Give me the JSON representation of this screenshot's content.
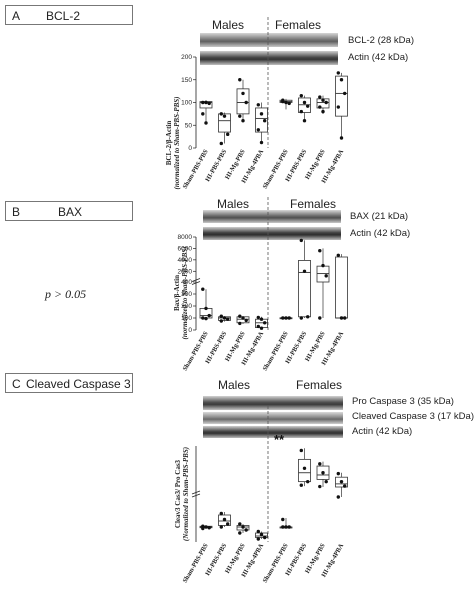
{
  "panels": [
    {
      "letter": "A",
      "title": "BCL-2",
      "males": "Males",
      "females": "Females",
      "bands": [
        "BCL-2 (28 kDa)",
        "Actin (42 kDa)"
      ],
      "ylabel_main": "BCL-2/β-Actin",
      "ylabel_sub": "(normalized to Sham-PBS-PBS)",
      "significance": "",
      "note": ""
    },
    {
      "letter": "B",
      "title": "BAX",
      "males": "Males",
      "females": "Females",
      "bands": [
        "BAX (21 kDa)",
        "Actin (42 kDa)"
      ],
      "ylabel_main": "Bax/β-Actin",
      "ylabel_sub": "(normalized to Sham-PBS-PBS)",
      "significance": "",
      "note": "p > 0.05"
    },
    {
      "letter": "C",
      "title": "Cleaved Caspase 3",
      "males": "Males",
      "females": "Females",
      "bands": [
        "Pro Caspase 3 (35 kDa)",
        "Cleaved Caspase 3 (17 kDa)",
        "Actin (42 kDa)"
      ],
      "ylabel_main": "Cleav3 Cas3/ Pro Cas3",
      "ylabel_sub": "(Normalized to Sham-PBS-PBS)",
      "significance": "**",
      "note": ""
    }
  ],
  "chart_data": [
    {
      "type": "box",
      "categories": [
        "Sham-PBS-PBS",
        "HI-PBS-PBS",
        "HI-Mg-PBS",
        "HI-Mg-4PBA",
        "Sham-PBS-PBS",
        "HI-PBS-PBS",
        "HI-Mg-PBS",
        "HI-Mg-4PBA"
      ],
      "groups": [
        "Males",
        "Males",
        "Males",
        "Males",
        "Females",
        "Females",
        "Females",
        "Females"
      ],
      "ylim": [
        0,
        200
      ],
      "yticks": [
        0,
        50,
        100,
        150,
        200
      ],
      "boxes": [
        {
          "min": 55,
          "q1": 88,
          "median": 100,
          "q3": 102,
          "max": 105,
          "points": [
            100,
            100,
            98,
            75,
            55
          ]
        },
        {
          "min": 10,
          "q1": 35,
          "median": 60,
          "q3": 75,
          "max": 78,
          "points": [
            75,
            70,
            30,
            10
          ]
        },
        {
          "min": 60,
          "q1": 75,
          "median": 100,
          "q3": 130,
          "max": 150,
          "points": [
            150,
            120,
            100,
            70,
            60
          ]
        },
        {
          "min": 10,
          "q1": 35,
          "median": 65,
          "q3": 88,
          "max": 100,
          "points": [
            95,
            75,
            60,
            40,
            12
          ]
        },
        {
          "min": 85,
          "q1": 100,
          "median": 102,
          "q3": 105,
          "max": 108,
          "points": [
            105,
            100,
            98,
            102
          ]
        },
        {
          "min": 60,
          "q1": 78,
          "median": 95,
          "q3": 110,
          "max": 115,
          "points": [
            115,
            100,
            92,
            80,
            60
          ]
        },
        {
          "min": 75,
          "q1": 88,
          "median": 100,
          "q3": 108,
          "max": 115,
          "points": [
            112,
            105,
            100,
            90,
            80
          ]
        },
        {
          "min": 20,
          "q1": 70,
          "median": 120,
          "q3": 158,
          "max": 165,
          "points": [
            165,
            150,
            120,
            90,
            22
          ]
        }
      ]
    },
    {
      "type": "box",
      "categories": [
        "Sham-PBS-PBS",
        "HI-PBS-PBS",
        "HI-Mg-PBS",
        "HI-Mg-4PBA",
        "Sham-PBS-PBS",
        "HI-PBS-PBS",
        "HI-Mg-PBS",
        "HI-Mg-4PBA"
      ],
      "groups": [
        "Males",
        "Males",
        "Males",
        "Males",
        "Females",
        "Females",
        "Females",
        "Females"
      ],
      "ylim": [
        0,
        8000
      ],
      "yticks": [
        0,
        100,
        200,
        300,
        400,
        2000,
        4000,
        6000,
        8000
      ],
      "axis_break": [
        400,
        1000
      ],
      "boxes": [
        {
          "min": 90,
          "q1": 100,
          "median": 120,
          "q3": 180,
          "max": 340,
          "points": [
            340,
            180,
            120,
            100,
            95
          ]
        },
        {
          "min": 70,
          "q1": 80,
          "median": 100,
          "q3": 110,
          "max": 115,
          "points": [
            115,
            100,
            90,
            75
          ]
        },
        {
          "min": 50,
          "q1": 60,
          "median": 90,
          "q3": 110,
          "max": 115,
          "points": [
            115,
            100,
            80,
            55
          ]
        },
        {
          "min": 10,
          "q1": 20,
          "median": 60,
          "q3": 90,
          "max": 110,
          "points": [
            105,
            90,
            60,
            30,
            15
          ]
        },
        {
          "min": 95,
          "q1": 98,
          "median": 100,
          "q3": 102,
          "max": 105,
          "points": [
            100,
            100,
            100
          ]
        },
        {
          "min": 100,
          "q1": 110,
          "median": 1800,
          "q3": 3900,
          "max": 7400,
          "points": [
            7400,
            2000,
            110,
            100
          ]
        },
        {
          "min": 100,
          "q1": 800,
          "median": 1600,
          "q3": 2900,
          "max": 6000,
          "points": [
            5600,
            3000,
            1200,
            100
          ]
        },
        {
          "min": 100,
          "q1": 100,
          "median": 100,
          "q3": 4500,
          "max": 5000,
          "points": [
            4800,
            100,
            100
          ]
        }
      ]
    },
    {
      "type": "box",
      "categories": [
        "Sham-PBS-PBS",
        "HI-PBS-PBS",
        "HI-Mg-PBS",
        "HI-Mg-4PBA",
        "Sham-PBS-PBS",
        "HI-PBS-PBS",
        "HI-Mg-PBS",
        "HI-Mg-4PBA"
      ],
      "groups": [
        "Males",
        "Males",
        "Males",
        "Males",
        "Females",
        "Females",
        "Females",
        "Females"
      ],
      "ylim": [
        0,
        100
      ],
      "yticks": [],
      "axis_break": [
        3,
        8
      ],
      "boxes": [
        {
          "min": 0.9,
          "q1": 0.95,
          "median": 1.0,
          "q3": 1.05,
          "max": 1.1,
          "points": [
            1.05,
            1.0,
            0.95,
            0.9
          ]
        },
        {
          "min": 1.0,
          "q1": 1.1,
          "median": 1.4,
          "q3": 1.8,
          "max": 2.0,
          "points": [
            1.9,
            1.5,
            1.2,
            1.0
          ]
        },
        {
          "min": 0.6,
          "q1": 0.8,
          "median": 1.0,
          "q3": 1.1,
          "max": 1.2,
          "points": [
            1.2,
            1.0,
            0.8,
            0.6
          ]
        },
        {
          "min": 0.2,
          "q1": 0.3,
          "median": 0.4,
          "q3": 0.6,
          "max": 0.7,
          "points": [
            0.7,
            0.5,
            0.3,
            0.2
          ]
        },
        {
          "min": 0.9,
          "q1": 1.0,
          "median": 1.0,
          "q3": 1.0,
          "max": 1.6,
          "points": [
            1.5,
            1.0,
            1.0,
            1.0
          ]
        },
        {
          "min": 10,
          "q1": 20,
          "median": 40,
          "q3": 70,
          "max": 95,
          "points": [
            90,
            50,
            20,
            12
          ]
        },
        {
          "min": 8,
          "q1": 25,
          "median": 35,
          "q3": 55,
          "max": 65,
          "points": [
            60,
            40,
            20,
            9
          ]
        },
        {
          "min": 5,
          "q1": 8,
          "median": 15,
          "q3": 30,
          "max": 40,
          "points": [
            38,
            20,
            10,
            6
          ]
        }
      ]
    }
  ]
}
